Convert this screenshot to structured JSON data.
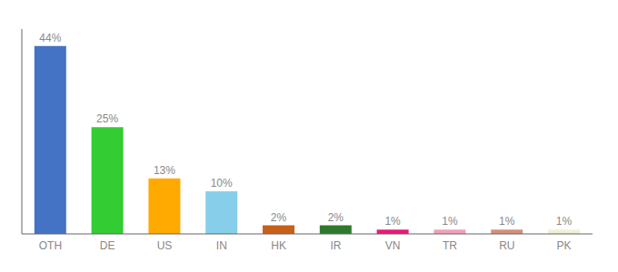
{
  "chart_data": {
    "type": "bar",
    "categories": [
      "OTH",
      "DE",
      "US",
      "IN",
      "HK",
      "IR",
      "VN",
      "TR",
      "RU",
      "PK"
    ],
    "values": [
      44,
      25,
      13,
      10,
      2,
      2,
      1,
      1,
      1,
      1
    ],
    "value_labels": [
      "44%",
      "25%",
      "13%",
      "10%",
      "2%",
      "2%",
      "1%",
      "1%",
      "1%",
      "1%"
    ],
    "colors": [
      "#4472c4",
      "#33cc33",
      "#ffaa00",
      "#87ceeb",
      "#c8601a",
      "#2d7a2d",
      "#e8197a",
      "#f0a0b8",
      "#d4907a",
      "#f0f0d8"
    ],
    "ylim": [
      0,
      48
    ],
    "data_labels": true,
    "tick_labels": "x",
    "grid": false
  }
}
